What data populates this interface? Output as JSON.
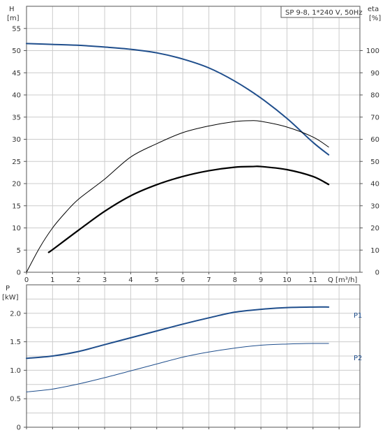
{
  "chart_data": [
    {
      "type": "line",
      "title": "SP 9-8, 1*240 V, 50Hz",
      "xlabel": "Q [m³/h]",
      "ylabel_name": "H",
      "ylabel_unit": "[m]",
      "y2label_name": "eta",
      "y2label_unit": "[%]",
      "xlim": [
        0,
        12.8
      ],
      "ylim": [
        0,
        60
      ],
      "y2lim": [
        0,
        120
      ],
      "xticks": [
        "0",
        "1",
        "2",
        "3",
        "4",
        "5",
        "6",
        "7",
        "8",
        "9",
        "10",
        "11"
      ],
      "yticks": [
        "0",
        "5",
        "10",
        "15",
        "20",
        "25",
        "30",
        "35",
        "40",
        "45",
        "50",
        "55"
      ],
      "y2ticks": [
        "0",
        "10",
        "20",
        "30",
        "40",
        "50",
        "60",
        "70",
        "80",
        "90",
        "100"
      ],
      "grid": true,
      "series": [
        {
          "axis": "left",
          "color": "#1f4e8c",
          "width": 2,
          "points": [
            [
              0,
              51.6
            ],
            [
              1,
              51.4
            ],
            [
              2,
              51.2
            ],
            [
              3,
              50.8
            ],
            [
              4,
              50.3
            ],
            [
              5,
              49.5
            ],
            [
              6,
              48.1
            ],
            [
              7,
              46.1
            ],
            [
              8,
              43.1
            ],
            [
              9,
              39.3
            ],
            [
              10,
              34.7
            ],
            [
              11,
              29.3
            ],
            [
              11.6,
              26.5
            ]
          ]
        },
        {
          "axis": "right",
          "color": "#000000",
          "width": 1,
          "points": [
            [
              0,
              0
            ],
            [
              0.5,
              11
            ],
            [
              1,
              20
            ],
            [
              1.5,
              27
            ],
            [
              2,
              33
            ],
            [
              3,
              42
            ],
            [
              4,
              52
            ],
            [
              5,
              58
            ],
            [
              6,
              63
            ],
            [
              7,
              66
            ],
            [
              8,
              68
            ],
            [
              8.6,
              68.4
            ],
            [
              9,
              68.1
            ],
            [
              10,
              65.5
            ],
            [
              11,
              61
            ],
            [
              11.6,
              56.5
            ]
          ]
        },
        {
          "axis": "right",
          "color": "#000000",
          "width": 2.2,
          "points": [
            [
              0.85,
              9
            ],
            [
              1,
              10.2
            ],
            [
              2,
              19
            ],
            [
              3,
              27.5
            ],
            [
              4,
              34.5
            ],
            [
              5,
              39.5
            ],
            [
              6,
              43.2
            ],
            [
              7,
              45.8
            ],
            [
              8,
              47.4
            ],
            [
              8.7,
              47.7
            ],
            [
              9,
              47.7
            ],
            [
              10,
              46.3
            ],
            [
              11,
              43.2
            ],
            [
              11.6,
              39.6
            ]
          ]
        }
      ]
    },
    {
      "type": "line",
      "ylabel_name": "P",
      "ylabel_unit": "[kW]",
      "xlim": [
        0,
        12.8
      ],
      "ylim": [
        0,
        2.5
      ],
      "yticks": [
        "0",
        "0.5",
        "1.0",
        "1.5",
        "2.0"
      ],
      "grid": true,
      "series": [
        {
          "name": "P1",
          "color": "#1f4e8c",
          "width": 2,
          "points": [
            [
              0,
              1.21
            ],
            [
              1,
              1.25
            ],
            [
              2,
              1.33
            ],
            [
              3,
              1.45
            ],
            [
              4,
              1.57
            ],
            [
              5,
              1.69
            ],
            [
              6,
              1.81
            ],
            [
              7,
              1.92
            ],
            [
              8,
              2.02
            ],
            [
              9,
              2.07
            ],
            [
              10,
              2.1
            ],
            [
              11,
              2.11
            ],
            [
              11.6,
              2.11
            ]
          ]
        },
        {
          "name": "P2",
          "color": "#1f4e8c",
          "width": 1,
          "points": [
            [
              0,
              0.62
            ],
            [
              1,
              0.67
            ],
            [
              2,
              0.76
            ],
            [
              3,
              0.87
            ],
            [
              4,
              0.99
            ],
            [
              5,
              1.11
            ],
            [
              6,
              1.23
            ],
            [
              7,
              1.32
            ],
            [
              8,
              1.39
            ],
            [
              9,
              1.44
            ],
            [
              10,
              1.46
            ],
            [
              11,
              1.47
            ],
            [
              11.6,
              1.47
            ]
          ]
        }
      ]
    }
  ]
}
